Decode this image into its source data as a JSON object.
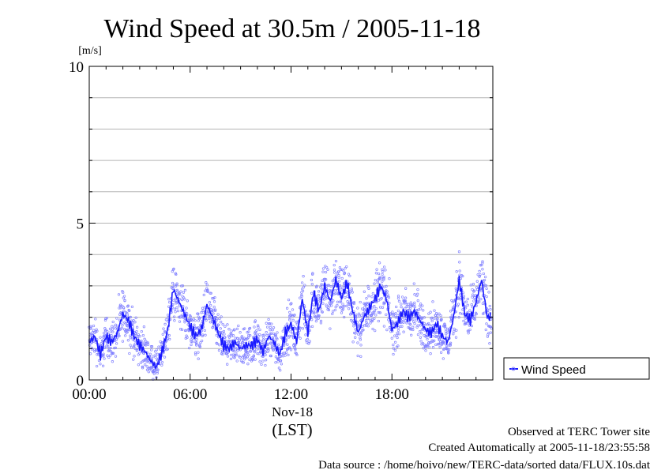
{
  "chart_data": {
    "type": "scatter",
    "title": "Wind Speed at 30.5m / 2005-11-18",
    "ylabel": "[m/s]",
    "xlabel": "(LST)",
    "date_label": "Nov-18",
    "ylim": [
      0,
      10
    ],
    "xlim": [
      "00:00",
      "24:00"
    ],
    "yticks": [
      0,
      5,
      10
    ],
    "xticks": [
      "00:00",
      "06:00",
      "12:00",
      "18:00"
    ],
    "grid": true,
    "legend_position": "right",
    "colors": {
      "line": "#1a1aff",
      "points": "#8080ff"
    },
    "series": [
      {
        "name": "Wind Speed",
        "x": [
          "00:00",
          "00:20",
          "00:40",
          "01:00",
          "01:20",
          "01:40",
          "02:00",
          "02:20",
          "02:40",
          "03:00",
          "03:20",
          "03:40",
          "04:00",
          "04:20",
          "04:40",
          "05:00",
          "05:20",
          "05:40",
          "06:00",
          "06:20",
          "06:40",
          "07:00",
          "07:20",
          "07:40",
          "08:00",
          "08:20",
          "08:40",
          "09:00",
          "09:20",
          "09:40",
          "10:00",
          "10:20",
          "10:40",
          "11:00",
          "11:20",
          "11:40",
          "12:00",
          "12:20",
          "12:40",
          "13:00",
          "13:20",
          "13:40",
          "14:00",
          "14:20",
          "14:40",
          "15:00",
          "15:20",
          "15:40",
          "16:00",
          "16:20",
          "16:40",
          "17:00",
          "17:20",
          "17:40",
          "18:00",
          "18:20",
          "18:40",
          "19:00",
          "19:20",
          "19:40",
          "20:00",
          "20:20",
          "20:40",
          "21:00",
          "21:20",
          "21:40",
          "22:00",
          "22:20",
          "22:40",
          "23:00",
          "23:20",
          "23:40"
        ],
        "y": [
          1.2,
          1.4,
          0.8,
          1.4,
          1.2,
          1.5,
          2.1,
          1.9,
          1.4,
          1.1,
          0.9,
          0.6,
          0.4,
          0.9,
          1.6,
          2.9,
          2.5,
          2.1,
          1.7,
          1.4,
          1.6,
          2.4,
          2.0,
          1.5,
          1.1,
          1.0,
          1.2,
          1.0,
          1.1,
          1.1,
          1.3,
          0.9,
          1.4,
          1.2,
          0.8,
          1.5,
          1.8,
          1.2,
          2.6,
          1.5,
          2.8,
          2.2,
          3.0,
          2.5,
          3.2,
          2.6,
          3.1,
          2.2,
          1.5,
          2.0,
          2.3,
          2.6,
          3.0,
          2.6,
          1.6,
          1.8,
          2.2,
          2.0,
          2.2,
          1.9,
          1.6,
          1.5,
          1.8,
          1.4,
          1.2,
          2.0,
          3.2,
          2.1,
          1.9,
          2.5,
          3.2,
          2.0
        ]
      }
    ],
    "footer": [
      "Observed at TERC Tower site",
      "Created Automatically at 2005-11-18/23:55:58",
      "Data source : /home/hoivo/new/TERC-data/sorted  data/FLUX.10s.dat"
    ]
  }
}
